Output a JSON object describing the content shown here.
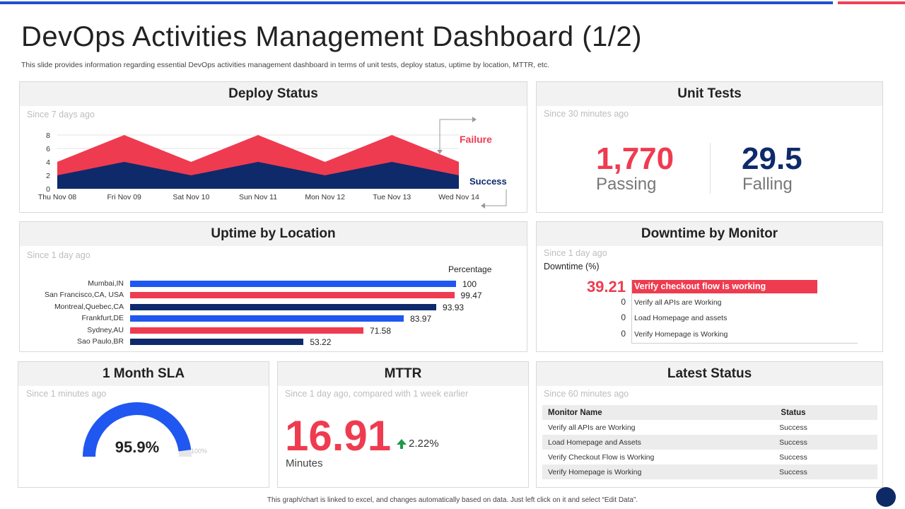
{
  "page": {
    "title": "DevOps Activities Management Dashboard (1/2)",
    "subtitle": "This slide provides information regarding essential DevOps activities management  dashboard in terms of unit tests, deploy status, uptime by location, MTTR,  etc.",
    "footer": "This graph/chart is linked to excel, and changes automatically based on data.  Just left click on it and select “Edit Data”."
  },
  "colors": {
    "red": "#ef3b50",
    "navy": "#0e2a6b",
    "blue": "#1f57f0",
    "panel_head": "#f2f2f2"
  },
  "deploy": {
    "title": "Deploy Status",
    "since": "Since 7 days ago",
    "failure_label": "Failure",
    "success_label": "Success"
  },
  "unit_tests": {
    "title": "Unit Tests",
    "since": "Since 30 minutes ago",
    "passing_value": "1,770",
    "passing_label": "Passing",
    "falling_value": "29.5",
    "falling_label": "Falling"
  },
  "uptime": {
    "title": "Uptime by Location",
    "since": "Since 1 day ago",
    "legend": "Percentage",
    "rows": [
      {
        "label": "Mumbai,IN",
        "value": 100,
        "value_text": "100",
        "color": "#1f57f0"
      },
      {
        "label": "San Francisco,CA, USA",
        "value": 99.47,
        "value_text": "99.47",
        "color": "#ef3b50"
      },
      {
        "label": "Montreal,Quebec,CA",
        "value": 93.93,
        "value_text": "93.93",
        "color": "#0e2a6b"
      },
      {
        "label": "Frankfurt,DE",
        "value": 83.97,
        "value_text": "83.97",
        "color": "#1f57f0"
      },
      {
        "label": "Sydney,AU",
        "value": 71.58,
        "value_text": "71.58",
        "color": "#ef3b50"
      },
      {
        "label": "Sao Paulo,BR",
        "value": 53.22,
        "value_text": "53.22",
        "color": "#0e2a6b"
      }
    ]
  },
  "downtime": {
    "title": "Downtime by Monitor",
    "since": "Since 1 day ago",
    "axis_label": "Downtime  (%)",
    "rows": [
      {
        "value_text": "39.21",
        "label": "Verify checkout flow is working",
        "value": 39.21
      },
      {
        "value_text": "0",
        "label": "Verify all APIs  are Working",
        "value": 0
      },
      {
        "value_text": "0",
        "label": "Load Homepage and assets",
        "value": 0
      },
      {
        "value_text": "0",
        "label": "Verify Homepage is Working",
        "value": 0
      }
    ]
  },
  "sla": {
    "title": "1 Month SLA",
    "since": "Since 1 minutes ago",
    "value_text": "95.9%",
    "value": 95.9,
    "max_label": "100%"
  },
  "mttr": {
    "title": "MTTR",
    "since": "Since 1 day ago, compared with 1 week earlier",
    "value": "16.91",
    "change": "2.22%",
    "unit": "Minutes"
  },
  "latest_status": {
    "title": "Latest Status",
    "since": "Since 60 minutes ago",
    "columns": [
      "Monitor Name",
      "Status"
    ],
    "rows": [
      [
        "Verify all APIs  are Working",
        "Success"
      ],
      [
        "Load Homepage and Assets",
        "Success"
      ],
      [
        "Verify Checkout Flow is Working",
        "Success"
      ],
      [
        "Verify Homepage is Working",
        "Success"
      ]
    ]
  },
  "chart_data": [
    {
      "type": "area",
      "title": "Deploy Status",
      "categories": [
        "Thu Nov 08",
        "Fri Nov 09",
        "Sat Nov 10",
        "Sun Nov 11",
        "Mon Nov 12",
        "Tue Nov 13",
        "Wed Nov 14"
      ],
      "series": [
        {
          "name": "Success",
          "values": [
            2,
            4,
            2,
            4,
            2,
            4,
            2
          ]
        },
        {
          "name": "Failure",
          "values": [
            2,
            4,
            2,
            4,
            2,
            4,
            2
          ]
        }
      ],
      "stacked": true,
      "yticks": [
        "0",
        "2",
        "4",
        "6",
        "8"
      ],
      "ylim": [
        0,
        8
      ]
    },
    {
      "type": "bar",
      "title": "Uptime by Location",
      "orientation": "horizontal",
      "categories": [
        "Mumbai,IN",
        "San Francisco,CA, USA",
        "Montreal,Quebec,CA",
        "Frankfurt,DE",
        "Sydney,AU",
        "Sao Paulo,BR"
      ],
      "values": [
        100,
        99.47,
        93.93,
        83.97,
        71.58,
        53.22
      ],
      "xlabel": "Percentage"
    },
    {
      "type": "bar",
      "title": "Downtime by Monitor",
      "orientation": "horizontal",
      "categories": [
        "Verify checkout flow is working",
        "Verify all APIs  are Working",
        "Load Homepage and assets",
        "Verify Homepage is Working"
      ],
      "values": [
        39.21,
        0,
        0,
        0
      ],
      "xlabel": "Downtime  (%)"
    }
  ]
}
